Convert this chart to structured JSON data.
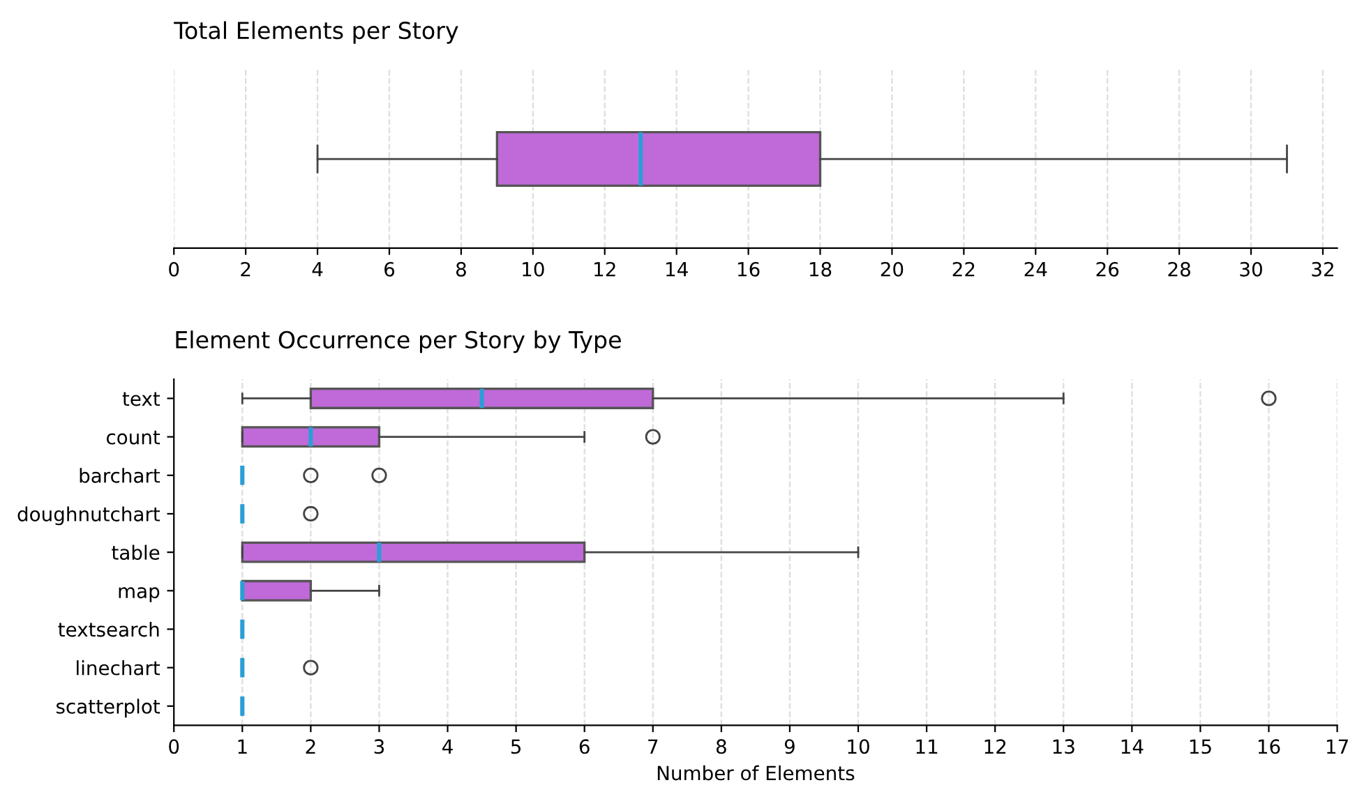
{
  "chart_data": [
    {
      "type": "box",
      "title": "Total Elements per Story",
      "orientation": "horizontal",
      "categories": [
        null
      ],
      "tick_labels": "x",
      "grid": "x",
      "xlim": [
        0,
        32.4
      ],
      "xticks": [
        0,
        2,
        4,
        6,
        8,
        10,
        12,
        14,
        16,
        18,
        20,
        22,
        24,
        26,
        28,
        30,
        32
      ],
      "series": [
        {
          "color": "#bf6ad8",
          "boxes": [
            {
              "low": 4,
              "q1": 9,
              "median": 13,
              "q3": 18,
              "high": 31
            }
          ]
        }
      ]
    },
    {
      "type": "box",
      "title": "Element Occurrence per Story by Type",
      "xlabel": "Number of Elements",
      "orientation": "horizontal",
      "grid": "x",
      "categories": [
        "text",
        "count",
        "barchart",
        "doughnutchart",
        "table",
        "map",
        "textsearch",
        "linechart",
        "scatterplot"
      ],
      "xlim": [
        0,
        17
      ],
      "xticks": [
        0,
        1,
        2,
        3,
        4,
        5,
        6,
        7,
        8,
        9,
        10,
        11,
        12,
        13,
        14,
        15,
        16,
        17
      ],
      "series": [
        {
          "color": "#bf6ad8",
          "boxes": [
            {
              "low": 1,
              "q1": 2,
              "median": 4.5,
              "q3": 7,
              "high": 13,
              "outliers": [
                16
              ]
            },
            {
              "low": 1,
              "q1": 1,
              "median": 2,
              "q3": 3,
              "high": 6,
              "outliers": [
                7
              ]
            },
            {
              "low": 1,
              "q1": 1,
              "median": 1,
              "q3": 1,
              "high": 1,
              "outliers": [
                2,
                3
              ]
            },
            {
              "low": 1,
              "q1": 1,
              "median": 1,
              "q3": 1,
              "high": 1,
              "outliers": [
                2
              ]
            },
            {
              "low": 1,
              "q1": 1,
              "median": 3,
              "q3": 6,
              "high": 10
            },
            {
              "low": 1,
              "q1": 1,
              "median": 1,
              "q3": 2,
              "high": 3
            },
            {
              "low": 1,
              "q1": 1,
              "median": 1,
              "q3": 1,
              "high": 1
            },
            {
              "low": 1,
              "q1": 1,
              "median": 1,
              "q3": 1,
              "high": 1,
              "outliers": [
                2
              ]
            },
            {
              "low": 1,
              "q1": 1,
              "median": 1,
              "q3": 1,
              "high": 1
            }
          ]
        }
      ]
    }
  ]
}
